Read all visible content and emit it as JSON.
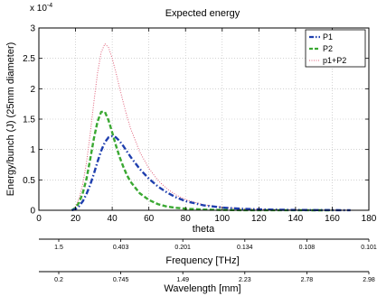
{
  "chart_data": {
    "type": "line",
    "title": "Expected energy",
    "xlabel": "theta",
    "ylabel": "Energy/bunch (J) (25mm diameter)",
    "y_exponent_label": "x 10",
    "y_exponent_power": "-4",
    "xlim": [
      0,
      180
    ],
    "ylim": [
      0,
      3
    ],
    "grid": true,
    "legend_placement": "top-right",
    "x_ticks": [
      "0",
      "20",
      "40",
      "60",
      "80",
      "100",
      "120",
      "140",
      "160",
      "180"
    ],
    "y_ticks": [
      "0",
      "0.5",
      "1",
      "1.5",
      "2",
      "2.5",
      "3"
    ],
    "series": [
      {
        "name": "P1",
        "color": "#1f3fae",
        "style": "dash-dot",
        "x": [
          18,
          20,
          22,
          24,
          26,
          28,
          30,
          32,
          34,
          36,
          38,
          40,
          42,
          44,
          46,
          48,
          50,
          55,
          60,
          65,
          70,
          75,
          80,
          90,
          100,
          110,
          120,
          130,
          140,
          150,
          160,
          170
        ],
        "y": [
          0.0,
          0.02,
          0.07,
          0.15,
          0.27,
          0.42,
          0.6,
          0.8,
          0.98,
          1.12,
          1.2,
          1.22,
          1.2,
          1.14,
          1.06,
          0.97,
          0.88,
          0.68,
          0.52,
          0.39,
          0.29,
          0.21,
          0.15,
          0.08,
          0.045,
          0.025,
          0.015,
          0.009,
          0.005,
          0.003,
          0.002,
          0.001
        ]
      },
      {
        "name": "P2",
        "color": "#3aa832",
        "style": "dashed",
        "x": [
          18,
          20,
          22,
          24,
          26,
          28,
          30,
          32,
          34,
          36,
          38,
          40,
          42,
          44,
          46,
          48,
          50,
          55,
          60,
          65,
          70,
          75,
          80,
          90,
          100,
          110,
          120,
          130,
          140,
          150,
          160
        ],
        "y": [
          0.0,
          0.04,
          0.13,
          0.29,
          0.52,
          0.84,
          1.18,
          1.46,
          1.62,
          1.62,
          1.48,
          1.28,
          1.07,
          0.88,
          0.72,
          0.58,
          0.47,
          0.28,
          0.17,
          0.1,
          0.06,
          0.04,
          0.025,
          0.011,
          0.005,
          0.002,
          0.001,
          0.0005,
          0.0003,
          0.0001,
          0.0
        ]
      },
      {
        "name": "p1+P2",
        "color": "#e0607a",
        "style": "dotted",
        "x": [
          18,
          20,
          22,
          24,
          26,
          28,
          30,
          32,
          34,
          36,
          38,
          40,
          42,
          44,
          46,
          48,
          50,
          55,
          60,
          65,
          70,
          75,
          80,
          90,
          100,
          110,
          120,
          130,
          140,
          150,
          160,
          170
        ],
        "y": [
          0.0,
          0.06,
          0.2,
          0.44,
          0.79,
          1.26,
          1.78,
          2.26,
          2.6,
          2.74,
          2.68,
          2.5,
          2.27,
          2.02,
          1.78,
          1.55,
          1.35,
          0.96,
          0.69,
          0.49,
          0.35,
          0.25,
          0.175,
          0.091,
          0.05,
          0.027,
          0.016,
          0.0095,
          0.0053,
          0.0031,
          0.002,
          0.001
        ]
      }
    ],
    "secondary_axes": [
      {
        "label": "Frequency [THz]",
        "ticks": [
          "1.5",
          "0.403",
          "0.201",
          "0.134",
          "0.108",
          "0.101"
        ]
      },
      {
        "label": "Wavelength [mm]",
        "ticks": [
          "0.2",
          "0.745",
          "1.49",
          "2.23",
          "2.78",
          "2.98"
        ]
      }
    ]
  }
}
